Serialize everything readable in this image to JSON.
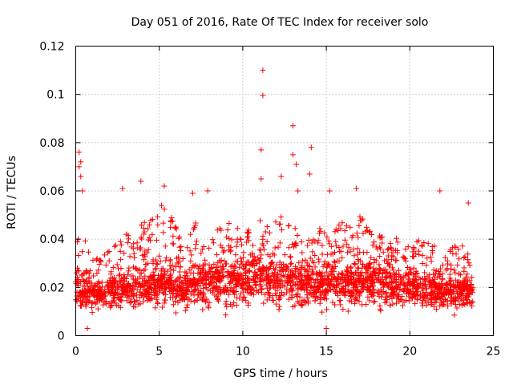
{
  "chart_data": {
    "type": "scatter",
    "title": "Day 051 of 2016, Rate Of TEC Index for receiver solo",
    "xlabel": "GPS time / hours",
    "ylabel": "ROTI / TECUs",
    "xlim": [
      0,
      25
    ],
    "ylim": [
      0,
      0.12
    ],
    "grid": true,
    "marker": "+",
    "marker_color": "#ff0000",
    "x_ticks": [
      0,
      5,
      10,
      15,
      20,
      25
    ],
    "x_tick_labels": [
      "0",
      "5",
      "10",
      "15",
      "20",
      "25"
    ],
    "y_ticks": [
      0,
      0.02,
      0.04,
      0.06,
      0.08,
      0.1,
      0.12
    ],
    "y_tick_labels": [
      "0",
      "0.02",
      "0.04",
      "0.06",
      "0.08",
      "0.1",
      "0.12"
    ],
    "series": [
      {
        "name": "ROTI",
        "baseline_profile": {
          "x": [
            0,
            0.5,
            1,
            2,
            3,
            4,
            5,
            6,
            6.5,
            7,
            8,
            9,
            10,
            11,
            12,
            13,
            14,
            15,
            16,
            17,
            18,
            19,
            20,
            21,
            22,
            23,
            23.8
          ],
          "mean": [
            0.018,
            0.017,
            0.016,
            0.016,
            0.017,
            0.02,
            0.021,
            0.02,
            0.016,
            0.021,
            0.021,
            0.022,
            0.023,
            0.024,
            0.022,
            0.021,
            0.021,
            0.02,
            0.021,
            0.022,
            0.021,
            0.02,
            0.019,
            0.018,
            0.017,
            0.017,
            0.016
          ],
          "upper": [
            0.045,
            0.04,
            0.035,
            0.035,
            0.042,
            0.05,
            0.055,
            0.05,
            0.03,
            0.048,
            0.042,
            0.048,
            0.045,
            0.052,
            0.05,
            0.048,
            0.045,
            0.045,
            0.048,
            0.05,
            0.042,
            0.04,
            0.042,
            0.04,
            0.035,
            0.038,
            0.045
          ]
        },
        "highlights": [
          {
            "x": 11.2,
            "y": 0.11
          },
          {
            "x": 11.2,
            "y": 0.0995
          },
          {
            "x": 13.0,
            "y": 0.087
          },
          {
            "x": 11.1,
            "y": 0.077
          },
          {
            "x": 14.1,
            "y": 0.078
          },
          {
            "x": 13.0,
            "y": 0.075
          },
          {
            "x": 0.2,
            "y": 0.076
          },
          {
            "x": 0.3,
            "y": 0.072
          },
          {
            "x": 0.2,
            "y": 0.07
          },
          {
            "x": 13.2,
            "y": 0.071
          },
          {
            "x": 14.0,
            "y": 0.067
          },
          {
            "x": 12.3,
            "y": 0.066
          },
          {
            "x": 11.1,
            "y": 0.065
          },
          {
            "x": 0.3,
            "y": 0.066
          },
          {
            "x": 0.4,
            "y": 0.06
          },
          {
            "x": 3.9,
            "y": 0.064
          },
          {
            "x": 2.8,
            "y": 0.061
          },
          {
            "x": 5.3,
            "y": 0.062
          },
          {
            "x": 7.0,
            "y": 0.059
          },
          {
            "x": 7.9,
            "y": 0.06
          },
          {
            "x": 13.3,
            "y": 0.06
          },
          {
            "x": 15.2,
            "y": 0.06
          },
          {
            "x": 16.8,
            "y": 0.061
          },
          {
            "x": 21.8,
            "y": 0.06
          },
          {
            "x": 0.7,
            "y": 0.003
          },
          {
            "x": 15.0,
            "y": 0.003
          },
          {
            "x": 23.5,
            "y": 0.055
          }
        ]
      }
    ]
  }
}
